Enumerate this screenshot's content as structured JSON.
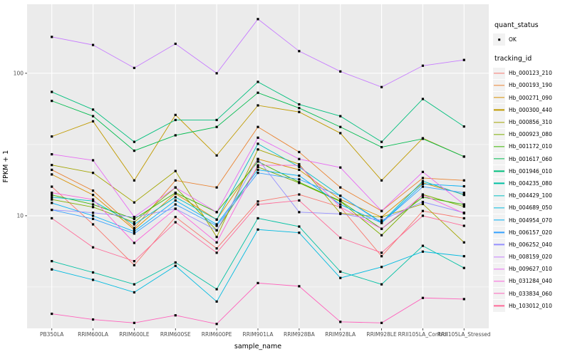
{
  "chart_data": {
    "type": "line",
    "title": "",
    "xlabel": "sample_name",
    "ylabel": "FPKM + 1",
    "x_categories": [
      "PB350LA",
      "RRIM600LA",
      "RRIM600LE",
      "RRIM600SE",
      "RRIM600PE",
      "RRIM901LA",
      "RRIM928BA",
      "RRIM928LA",
      "RRIM928LE",
      "RRII105LA_Control",
      "RRII105LA_Stressed"
    ],
    "y_axis": {
      "scale": "log10",
      "ticks": [
        10,
        100
      ],
      "tick_labels": [
        "10",
        "100"
      ],
      "minor_ticks": [
        3.162,
        31.623
      ],
      "range": [
        1.62,
        305
      ]
    },
    "legend_quant": {
      "title": "quant_status",
      "items": [
        {
          "label": "OK",
          "shape": "point",
          "color": "#000000"
        }
      ]
    },
    "legend_tracking": {
      "title": "tracking_id"
    },
    "series": [
      {
        "name": "Hb_000123_210",
        "color": "#F8766D",
        "values": [
          16.0,
          8.7,
          4.5,
          9.8,
          5.9,
          12.6,
          14.1,
          11.5,
          5.2,
          10.8,
          9.6
        ]
      },
      {
        "name": "Hb_000193_190",
        "color": "#EA8331",
        "values": [
          21.0,
          15.0,
          8.2,
          17.7,
          15.8,
          42.0,
          28.0,
          15.8,
          10.8,
          18.4,
          17.7
        ]
      },
      {
        "name": "Hb_000271_090",
        "color": "#D89000",
        "values": [
          19.5,
          14.0,
          8.0,
          14.3,
          9.4,
          25.0,
          21.0,
          13.0,
          9.8,
          17.0,
          14.1
        ]
      },
      {
        "name": "Hb_000300_440",
        "color": "#C09B00",
        "values": [
          36.0,
          46.0,
          17.7,
          51.0,
          26.5,
          59.5,
          53.5,
          38.0,
          17.7,
          35.0,
          26.0
        ]
      },
      {
        "name": "Hb_000856_310",
        "color": "#A3A500",
        "values": [
          22.7,
          20.0,
          12.4,
          20.6,
          7.1,
          29.2,
          23.0,
          10.4,
          9.8,
          12.1,
          6.5
        ]
      },
      {
        "name": "Hb_000923_080",
        "color": "#7CAE00",
        "values": [
          13.0,
          11.5,
          9.0,
          15.8,
          7.9,
          22.0,
          17.0,
          12.6,
          7.3,
          14.1,
          11.6
        ]
      },
      {
        "name": "Hb_001172_010",
        "color": "#39B600",
        "values": [
          14.0,
          12.0,
          9.5,
          14.5,
          10.6,
          24.0,
          17.2,
          12.7,
          8.1,
          13.5,
          12.0
        ]
      },
      {
        "name": "Hb_001617_060",
        "color": "#00BB4E",
        "values": [
          64.0,
          50.0,
          28.6,
          36.7,
          42.0,
          73.0,
          57.0,
          42.0,
          30.3,
          34.7,
          26.0
        ]
      },
      {
        "name": "Hb_001946_010",
        "color": "#00BF7D",
        "values": [
          74.0,
          55.6,
          33.0,
          47.0,
          47.0,
          87.0,
          60.5,
          50.0,
          33.0,
          66.0,
          42.3
        ]
      },
      {
        "name": "Hb_004235_080",
        "color": "#00C1A3",
        "values": [
          4.8,
          4.0,
          3.3,
          4.7,
          3.05,
          9.6,
          8.4,
          4.05,
          3.3,
          6.15,
          4.3
        ]
      },
      {
        "name": "Hb_004429_100",
        "color": "#00BFC4",
        "values": [
          13.5,
          12.7,
          8.7,
          13.5,
          9.4,
          32.0,
          22.0,
          13.8,
          9.0,
          17.5,
          14.0
        ]
      },
      {
        "name": "Hb_004689_050",
        "color": "#00BAE0",
        "values": [
          4.2,
          3.55,
          2.9,
          4.45,
          2.5,
          8.0,
          7.6,
          3.66,
          4.37,
          5.6,
          5.2
        ]
      },
      {
        "name": "Hb_004954_070",
        "color": "#00B0F6",
        "values": [
          12.3,
          10.0,
          7.75,
          12.8,
          8.7,
          21.0,
          19.1,
          12.0,
          8.9,
          16.7,
          16.1
        ]
      },
      {
        "name": "Hb_006157_020",
        "color": "#35A2FF",
        "values": [
          11.0,
          9.5,
          7.5,
          12.0,
          8.5,
          20.0,
          18.0,
          13.8,
          8.9,
          16.0,
          14.5
        ]
      },
      {
        "name": "Hb_006252_040",
        "color": "#9590FF",
        "values": [
          11.0,
          10.5,
          9.8,
          11.2,
          7.9,
          25.0,
          10.6,
          10.3,
          9.3,
          12.5,
          10.5
        ]
      },
      {
        "name": "Hb_008159_020",
        "color": "#C77CFF",
        "values": [
          180.0,
          158.0,
          109.0,
          161.0,
          100.0,
          240.0,
          143.0,
          103.0,
          80.0,
          113.0,
          124.0
        ]
      },
      {
        "name": "Hb_009627_010",
        "color": "#E76BF3",
        "values": [
          27.0,
          24.5,
          9.8,
          15.8,
          10.6,
          35.3,
          25.0,
          21.8,
          10.8,
          20.3,
          12.0
        ]
      },
      {
        "name": "Hb_031284_040",
        "color": "#FA62DB",
        "values": [
          14.5,
          13.0,
          6.45,
          11.2,
          6.5,
          22.6,
          22.6,
          11.5,
          8.1,
          14.0,
          10.4
        ]
      },
      {
        "name": "Hb_033834_060",
        "color": "#FF62BC",
        "values": [
          2.05,
          1.87,
          1.77,
          2.0,
          1.74,
          3.37,
          3.2,
          1.8,
          1.77,
          2.65,
          2.6
        ]
      },
      {
        "name": "Hb_103012_010",
        "color": "#FF6A98",
        "values": [
          9.6,
          6.0,
          4.8,
          9.0,
          5.5,
          12.0,
          12.8,
          7.0,
          5.5,
          10.0,
          8.5
        ]
      }
    ],
    "style": {
      "panel_bg": "#EBEBEB",
      "grid_color": "#FFFFFF",
      "point_color": "#000000",
      "axis_text_color": "#4D4D4D",
      "axis_title_color": "#000000",
      "legend_key_bg": "#F2F2F2"
    }
  }
}
